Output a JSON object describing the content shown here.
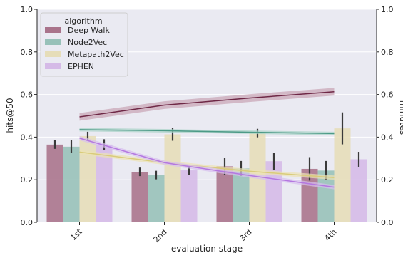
{
  "chart_data": {
    "type": "bar",
    "xlabel": "evaluation stage",
    "ylabel": "hits@50",
    "y2label": "minutes",
    "ylim": [
      0,
      1
    ],
    "y2lim": [
      0,
      1
    ],
    "yticks": [
      "0.0",
      "0.2",
      "0.4",
      "0.6",
      "0.8",
      "1.0"
    ],
    "grid": true,
    "legend_title": "algorithm",
    "legend_position": "top-left",
    "categories": [
      "1st",
      "2nd",
      "3rd",
      "4th"
    ],
    "series": [
      {
        "name": "Deep Walk",
        "color": "#a2667f",
        "values": [
          0.365,
          0.237,
          0.263,
          0.251
        ],
        "err": [
          0.02,
          0.02,
          0.04,
          0.055
        ]
      },
      {
        "name": "Node2Vec",
        "color": "#8fbdb2",
        "values": [
          0.355,
          0.222,
          0.253,
          0.243
        ],
        "err": [
          0.03,
          0.02,
          0.035,
          0.045
        ]
      },
      {
        "name": "Metapath2Vec",
        "color": "#e6dcb2",
        "values": [
          0.405,
          0.413,
          0.419,
          0.441
        ],
        "err": [
          0.02,
          0.03,
          0.02,
          0.075
        ]
      },
      {
        "name": "EPHEN",
        "color": "#d3b5e6",
        "values": [
          0.365,
          0.244,
          0.287,
          0.296
        ],
        "err": [
          0.025,
          0.02,
          0.04,
          0.035
        ]
      }
    ],
    "lines": [
      {
        "name": "Deep Walk",
        "color": "#6e2846",
        "band": "#c8a3b4",
        "values": [
          0.495,
          0.55,
          0.583,
          0.613
        ],
        "band_width": 0.018
      },
      {
        "name": "Node2Vec",
        "color": "#4c9a87",
        "band": "#a7d1c6",
        "values": [
          0.435,
          0.43,
          0.423,
          0.417
        ],
        "band_width": 0.008
      },
      {
        "name": "Metapath2Vec",
        "color": "#d9cc7a",
        "band": "#ece3b5",
        "values": [
          0.33,
          0.28,
          0.24,
          0.21
        ],
        "band_width": 0.01
      },
      {
        "name": "EPHEN",
        "color": "#b477e0",
        "band": "#d7bff0",
        "values": [
          0.395,
          0.28,
          0.22,
          0.165
        ],
        "band_width": 0.01
      }
    ]
  }
}
